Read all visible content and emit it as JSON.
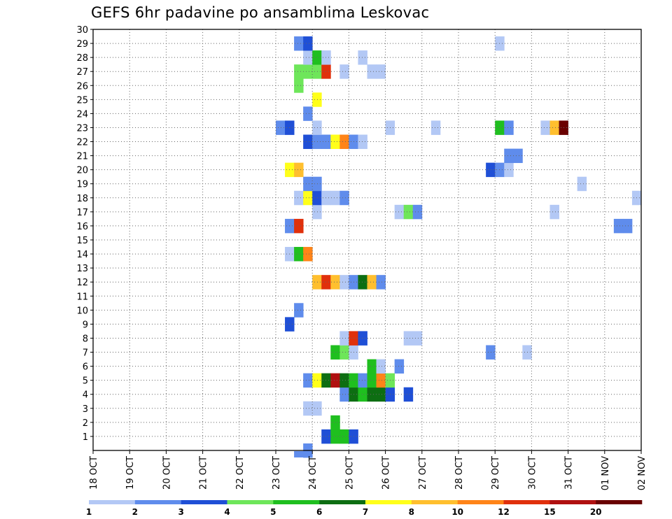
{
  "chart_data": {
    "type": "heatmap",
    "title": "GEFS 6hr padavine po ansamblima Leskovac",
    "xlabel": "",
    "ylabel": "",
    "x_tick_labels": [
      "18 OCT",
      "19 OCT",
      "20 OCT",
      "21 OCT",
      "22 OCT",
      "23 OCT",
      "24 OCT",
      "25 OCT",
      "26 OCT",
      "27 OCT",
      "28 OCT",
      "29 OCT",
      "30 OCT",
      "31 OCT",
      "01 NOV",
      "02 NOV"
    ],
    "x_range_days": [
      0,
      15
    ],
    "steps_per_day": 4,
    "ylim": [
      0,
      30
    ],
    "y_tick_labels": [
      "1",
      "2",
      "3",
      "4",
      "5",
      "6",
      "7",
      "8",
      "9",
      "10",
      "11",
      "12",
      "13",
      "14",
      "15",
      "16",
      "17",
      "18",
      "19",
      "20",
      "21",
      "22",
      "23",
      "24",
      "25",
      "26",
      "27",
      "28",
      "29",
      "30"
    ],
    "grid": true,
    "colorbar": {
      "labels": [
        "1",
        "2",
        "3",
        "4",
        "5",
        "6",
        "7",
        "8",
        "10",
        "12",
        "15",
        "20"
      ],
      "colors": [
        "#b3c8f5",
        "#5f8cec",
        "#1f4fd6",
        "#6ee65a",
        "#1fbf1f",
        "#0d6e12",
        "#ffff1a",
        "#ffbf2e",
        "#ff8418",
        "#e0300c",
        "#b01010",
        "#6a0000"
      ]
    },
    "cells": [
      {
        "member": 0,
        "step": 23,
        "level": 2
      },
      {
        "member": 1,
        "step": 25,
        "level": 3
      },
      {
        "member": 1,
        "step": 26,
        "level": 5
      },
      {
        "member": 1,
        "step": 27,
        "level": 5
      },
      {
        "member": 1,
        "step": 28,
        "level": 3
      },
      {
        "member": 2,
        "step": 26,
        "level": 5
      },
      {
        "member": 3,
        "step": 23,
        "level": 1
      },
      {
        "member": 3,
        "step": 24,
        "level": 1
      },
      {
        "member": 4,
        "step": 27,
        "level": 2
      },
      {
        "member": 4,
        "step": 28,
        "level": 6
      },
      {
        "member": 4,
        "step": 29,
        "level": 5
      },
      {
        "member": 4,
        "step": 30,
        "level": 6
      },
      {
        "member": 4,
        "step": 31,
        "level": 6
      },
      {
        "member": 4,
        "step": 32,
        "level": 3
      },
      {
        "member": 4,
        "step": 34,
        "level": 3
      },
      {
        "member": 5,
        "step": 23,
        "level": 2
      },
      {
        "member": 5,
        "step": 24,
        "level": 7
      },
      {
        "member": 5,
        "step": 25,
        "level": 6
      },
      {
        "member": 5,
        "step": 26,
        "level": 11
      },
      {
        "member": 5,
        "step": 27,
        "level": 6
      },
      {
        "member": 5,
        "step": 28,
        "level": 5
      },
      {
        "member": 5,
        "step": 29,
        "level": 2
      },
      {
        "member": 5,
        "step": 30,
        "level": 5
      },
      {
        "member": 5,
        "step": 31,
        "level": 9
      },
      {
        "member": 5,
        "step": 32,
        "level": 4
      },
      {
        "member": 6,
        "step": 30,
        "level": 5
      },
      {
        "member": 6,
        "step": 31,
        "level": 1
      },
      {
        "member": 6,
        "step": 33,
        "level": 2
      },
      {
        "member": 7,
        "step": 26,
        "level": 5
      },
      {
        "member": 7,
        "step": 27,
        "level": 4
      },
      {
        "member": 7,
        "step": 28,
        "level": 1
      },
      {
        "member": 7,
        "step": 43,
        "level": 2
      },
      {
        "member": 7,
        "step": 47,
        "level": 1
      },
      {
        "member": 8,
        "step": 27,
        "level": 1
      },
      {
        "member": 8,
        "step": 28,
        "level": 10
      },
      {
        "member": 8,
        "step": 29,
        "level": 3
      },
      {
        "member": 8,
        "step": 34,
        "level": 1
      },
      {
        "member": 8,
        "step": 35,
        "level": 1
      },
      {
        "member": 9,
        "step": 21,
        "level": 3
      },
      {
        "member": 10,
        "step": 22,
        "level": 2
      },
      {
        "member": 12,
        "step": 24,
        "level": 8
      },
      {
        "member": 12,
        "step": 25,
        "level": 10
      },
      {
        "member": 12,
        "step": 26,
        "level": 8
      },
      {
        "member": 12,
        "step": 27,
        "level": 1
      },
      {
        "member": 12,
        "step": 28,
        "level": 2
      },
      {
        "member": 12,
        "step": 29,
        "level": 6
      },
      {
        "member": 12,
        "step": 30,
        "level": 8
      },
      {
        "member": 12,
        "step": 31,
        "level": 2
      },
      {
        "member": 14,
        "step": 21,
        "level": 1
      },
      {
        "member": 14,
        "step": 22,
        "level": 5
      },
      {
        "member": 14,
        "step": 23,
        "level": 9
      },
      {
        "member": 16,
        "step": 21,
        "level": 2
      },
      {
        "member": 16,
        "step": 22,
        "level": 10
      },
      {
        "member": 16,
        "step": 57,
        "level": 2
      },
      {
        "member": 16,
        "step": 58,
        "level": 2
      },
      {
        "member": 17,
        "step": 24,
        "level": 1
      },
      {
        "member": 17,
        "step": 33,
        "level": 1
      },
      {
        "member": 17,
        "step": 34,
        "level": 4
      },
      {
        "member": 17,
        "step": 35,
        "level": 2
      },
      {
        "member": 17,
        "step": 50,
        "level": 1
      },
      {
        "member": 18,
        "step": 22,
        "level": 1
      },
      {
        "member": 18,
        "step": 23,
        "level": 7
      },
      {
        "member": 18,
        "step": 24,
        "level": 3
      },
      {
        "member": 18,
        "step": 25,
        "level": 1
      },
      {
        "member": 18,
        "step": 26,
        "level": 1
      },
      {
        "member": 18,
        "step": 27,
        "level": 2
      },
      {
        "member": 18,
        "step": 59,
        "level": 1
      },
      {
        "member": 19,
        "step": 23,
        "level": 2
      },
      {
        "member": 19,
        "step": 24,
        "level": 2
      },
      {
        "member": 19,
        "step": 53,
        "level": 1
      },
      {
        "member": 20,
        "step": 21,
        "level": 7
      },
      {
        "member": 20,
        "step": 22,
        "level": 8
      },
      {
        "member": 20,
        "step": 43,
        "level": 3
      },
      {
        "member": 20,
        "step": 44,
        "level": 2
      },
      {
        "member": 20,
        "step": 45,
        "level": 1
      },
      {
        "member": 21,
        "step": 45,
        "level": 2
      },
      {
        "member": 21,
        "step": 46,
        "level": 2
      },
      {
        "member": 22,
        "step": 23,
        "level": 3
      },
      {
        "member": 22,
        "step": 24,
        "level": 2
      },
      {
        "member": 22,
        "step": 25,
        "level": 2
      },
      {
        "member": 22,
        "step": 26,
        "level": 7
      },
      {
        "member": 22,
        "step": 27,
        "level": 9
      },
      {
        "member": 22,
        "step": 28,
        "level": 2
      },
      {
        "member": 22,
        "step": 29,
        "level": 1
      },
      {
        "member": 23,
        "step": 20,
        "level": 2
      },
      {
        "member": 23,
        "step": 21,
        "level": 3
      },
      {
        "member": 23,
        "step": 24,
        "level": 1
      },
      {
        "member": 23,
        "step": 32,
        "level": 1
      },
      {
        "member": 23,
        "step": 37,
        "level": 1
      },
      {
        "member": 23,
        "step": 44,
        "level": 5
      },
      {
        "member": 23,
        "step": 45,
        "level": 2
      },
      {
        "member": 23,
        "step": 49,
        "level": 1
      },
      {
        "member": 23,
        "step": 50,
        "level": 8
      },
      {
        "member": 23,
        "step": 51,
        "level": 12
      },
      {
        "member": 24,
        "step": 23,
        "level": 2
      },
      {
        "member": 25,
        "step": 24,
        "level": 7
      },
      {
        "member": 26,
        "step": 22,
        "level": 4
      },
      {
        "member": 27,
        "step": 22,
        "level": 4
      },
      {
        "member": 27,
        "step": 23,
        "level": 4
      },
      {
        "member": 27,
        "step": 24,
        "level": 4
      },
      {
        "member": 27,
        "step": 25,
        "level": 10
      },
      {
        "member": 27,
        "step": 27,
        "level": 1
      },
      {
        "member": 27,
        "step": 30,
        "level": 1
      },
      {
        "member": 27,
        "step": 31,
        "level": 1
      },
      {
        "member": 28,
        "step": 23,
        "level": 1
      },
      {
        "member": 28,
        "step": 24,
        "level": 5
      },
      {
        "member": 28,
        "step": 25,
        "level": 1
      },
      {
        "member": 28,
        "step": 29,
        "level": 1
      },
      {
        "member": 29,
        "step": 22,
        "level": 2
      },
      {
        "member": 29,
        "step": 23,
        "level": 3
      },
      {
        "member": 29,
        "step": 44,
        "level": 1
      }
    ],
    "extra_cells_below_axis": [
      {
        "step": 22,
        "level": 2
      }
    ]
  }
}
